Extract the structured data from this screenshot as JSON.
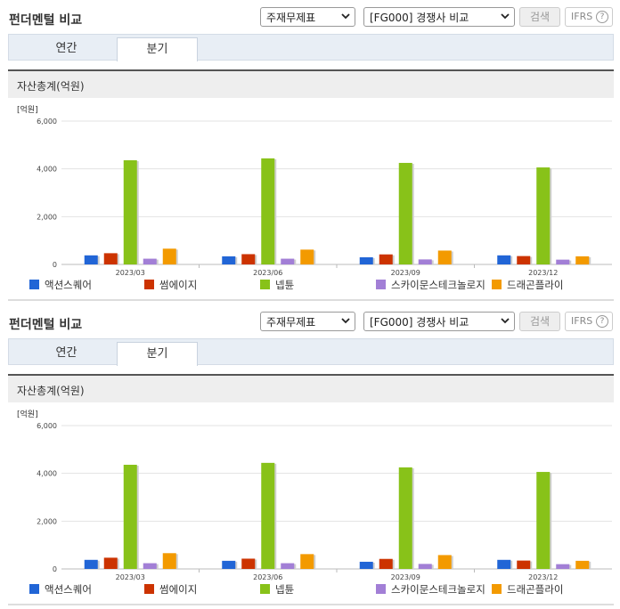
{
  "panels": [
    {
      "title": "펀더멘털 비교",
      "statement_select": "주재무제표",
      "comparison_select": "[FG000] 경쟁사 비교",
      "search_button": "검색",
      "ifrs_button": "IFRS",
      "help_icon": "?",
      "tabs": [
        {
          "label": "연간",
          "active": false
        },
        {
          "label": "분기",
          "active": true
        }
      ],
      "section_label": "자산총계(억원)"
    },
    {
      "title": "펀더멘털 비교",
      "statement_select": "주재무제표",
      "comparison_select": "[FG000] 경쟁사 비교",
      "search_button": "검색",
      "ifrs_button": "IFRS",
      "help_icon": "?",
      "tabs": [
        {
          "label": "연간",
          "active": false
        },
        {
          "label": "분기",
          "active": true
        }
      ],
      "section_label": "자산총계(억원)"
    }
  ],
  "chart_data": [
    {
      "type": "bar",
      "ylabel": "[억원]",
      "ylim": [
        0,
        6000
      ],
      "yticks": [
        "0",
        "2,000",
        "4,000",
        "6,000"
      ],
      "categories": [
        "2023/03",
        "2023/06",
        "2023/09",
        "2023/12"
      ],
      "series": [
        {
          "name": "액션스퀘어",
          "color": "#2165d6",
          "values": [
            380,
            340,
            300,
            380
          ]
        },
        {
          "name": "썸에이지",
          "color": "#cc3300",
          "values": [
            470,
            430,
            420,
            350
          ]
        },
        {
          "name": "넵튠",
          "color": "#88c219",
          "values": [
            4360,
            4440,
            4250,
            4060
          ]
        },
        {
          "name": "스카이문스테크놀로지",
          "color": "#a27fd6",
          "values": [
            240,
            240,
            210,
            200
          ]
        },
        {
          "name": "드래곤플라이",
          "color": "#f39a00",
          "values": [
            660,
            620,
            580,
            340
          ]
        }
      ]
    },
    {
      "type": "bar",
      "ylabel": "[억원]",
      "ylim": [
        0,
        6000
      ],
      "yticks": [
        "0",
        "2,000",
        "4,000",
        "6,000"
      ],
      "categories": [
        "2023/03",
        "2023/06",
        "2023/09",
        "2023/12"
      ],
      "series": [
        {
          "name": "액션스퀘어",
          "color": "#2165d6",
          "values": [
            380,
            340,
            300,
            380
          ]
        },
        {
          "name": "썸에이지",
          "color": "#cc3300",
          "values": [
            470,
            430,
            420,
            350
          ]
        },
        {
          "name": "넵튠",
          "color": "#88c219",
          "values": [
            4360,
            4440,
            4250,
            4060
          ]
        },
        {
          "name": "스카이문스테크놀로지",
          "color": "#a27fd6",
          "values": [
            240,
            240,
            210,
            200
          ]
        },
        {
          "name": "드래곤플라이",
          "color": "#f39a00",
          "values": [
            660,
            620,
            580,
            340
          ]
        }
      ]
    }
  ]
}
